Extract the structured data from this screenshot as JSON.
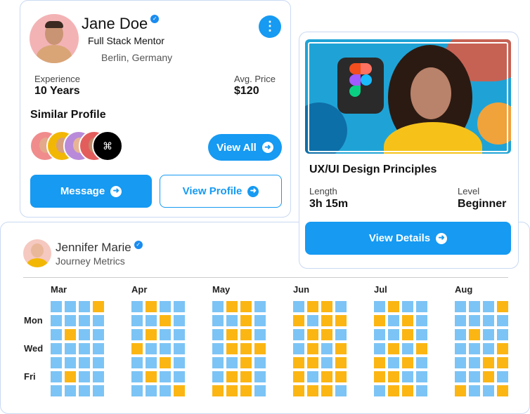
{
  "profile": {
    "name": "Jane Doe",
    "role": "Full Stack Mentor",
    "location": "Berlin, Germany",
    "experience_label": "Experience",
    "experience_value": "10 Years",
    "price_label": "Avg. Price",
    "price_value": "$120",
    "similar_title": "Similar Profile",
    "view_all": "View All",
    "message": "Message",
    "view_profile": "View Profile"
  },
  "course": {
    "title": "UX/UI Design Principles",
    "length_label": "Length",
    "length_value": "3h 15m",
    "level_label": "Level",
    "level_value": "Beginner",
    "button": "View Details"
  },
  "metrics": {
    "name": "Jennifer Marie",
    "subtitle": "Journey Metrics",
    "days": [
      null,
      "Mon",
      null,
      "Wed",
      null,
      "Fri",
      null
    ],
    "months": [
      {
        "name": "Mar",
        "cells": [
          [
            0,
            0,
            0,
            1
          ],
          [
            0,
            0,
            0,
            0
          ],
          [
            0,
            1,
            0,
            0
          ],
          [
            0,
            0,
            0,
            0
          ],
          [
            0,
            0,
            0,
            0
          ],
          [
            0,
            1,
            0,
            0
          ],
          [
            0,
            0,
            0,
            0
          ]
        ]
      },
      {
        "name": "Apr",
        "cells": [
          [
            0,
            1,
            0,
            0
          ],
          [
            0,
            0,
            1,
            0
          ],
          [
            0,
            1,
            0,
            0
          ],
          [
            1,
            0,
            0,
            0
          ],
          [
            0,
            0,
            1,
            0
          ],
          [
            0,
            1,
            0,
            0
          ],
          [
            0,
            0,
            0,
            1
          ]
        ]
      },
      {
        "name": "May",
        "cells": [
          [
            0,
            1,
            1,
            0
          ],
          [
            0,
            0,
            1,
            0
          ],
          [
            0,
            1,
            1,
            0
          ],
          [
            0,
            1,
            1,
            1
          ],
          [
            0,
            0,
            1,
            0
          ],
          [
            0,
            1,
            1,
            0
          ],
          [
            1,
            1,
            1,
            0
          ]
        ]
      },
      {
        "name": "Jun",
        "cells": [
          [
            0,
            1,
            1,
            0
          ],
          [
            1,
            0,
            1,
            1
          ],
          [
            0,
            1,
            1,
            0
          ],
          [
            0,
            1,
            0,
            1
          ],
          [
            1,
            1,
            0,
            1
          ],
          [
            1,
            0,
            1,
            1
          ],
          [
            1,
            1,
            1,
            0
          ]
        ]
      },
      {
        "name": "Jul",
        "cells": [
          [
            0,
            1,
            0,
            0
          ],
          [
            1,
            0,
            1,
            0
          ],
          [
            0,
            0,
            1,
            0
          ],
          [
            0,
            1,
            0,
            1
          ],
          [
            1,
            0,
            1,
            0
          ],
          [
            1,
            1,
            0,
            0
          ],
          [
            0,
            1,
            1,
            0
          ]
        ]
      },
      {
        "name": "Aug",
        "cells": [
          [
            0,
            0,
            0,
            1
          ],
          [
            0,
            0,
            0,
            0
          ],
          [
            0,
            1,
            0,
            0
          ],
          [
            0,
            0,
            0,
            1
          ],
          [
            0,
            0,
            1,
            1
          ],
          [
            0,
            0,
            1,
            0
          ],
          [
            1,
            0,
            0,
            1
          ]
        ]
      }
    ]
  }
}
